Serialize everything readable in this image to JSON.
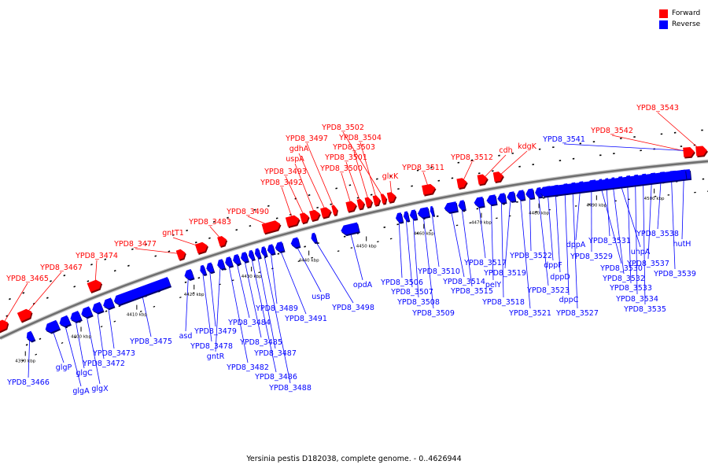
{
  "legend": {
    "forward_label": "Forward",
    "reverse_label": "Reverse",
    "forward_color": "#ff0000",
    "reverse_color": "#0000ff"
  },
  "caption": "Yersinia pestis D182038, complete genome. - 0..4626944",
  "ticks": [
    {
      "label": "4390 kbp"
    },
    {
      "label": "4400 kbp"
    },
    {
      "label": "4410 kbp"
    },
    {
      "label": "4420 kbp"
    },
    {
      "label": "4430 kbp"
    },
    {
      "label": "4440 kbp"
    },
    {
      "label": "4450 kbp"
    },
    {
      "label": "4460 kbp"
    },
    {
      "label": "4470 kbp"
    },
    {
      "label": "4480 kbp"
    },
    {
      "label": "4490 kbp"
    },
    {
      "label": "4500 kbp"
    }
  ],
  "forward_genes": [
    "YPD8_3465",
    "YPD8_3467",
    "YPD8_3474",
    "YPD8_3477",
    "gntT1",
    "YPD8_3483",
    "YPD8_3490",
    "YPD8_3492",
    "YPD8_3493",
    "uspA",
    "gdhA",
    "YPD8_3497",
    "YPD8_3500",
    "YPD8_3501",
    "YPD8_3503",
    "YPD8_3504",
    "YPD8_3502",
    "glxK",
    "YPD8_3511",
    "YPD8_3512",
    "cdh",
    "kdgK",
    "YPD8_3542",
    "YPD8_3543"
  ],
  "reverse_genes": [
    "YPD8_3466",
    "glgP",
    "glgA",
    "glgC",
    "glgX",
    "YPD8_3472",
    "YPD8_3473",
    "YPD8_3475",
    "asd",
    "YPD8_3478",
    "YPD8_3479",
    "gntR",
    "YPD8_3482",
    "YPD8_3484",
    "YPD8_3485",
    "YPD8_3486",
    "YPD8_3487",
    "YPD8_3488",
    "YPD8_3489",
    "YPD8_3491",
    "uspB",
    "YPD8_3498",
    "opdA",
    "YPD8_3506",
    "YPD8_3507",
    "YPD8_3508",
    "YPD8_3509",
    "YPD8_3510",
    "YPD8_3514",
    "YPD8_3515",
    "YPD8_3517",
    "pelY",
    "YPD8_3518",
    "YPD8_3519",
    "YPD8_3521",
    "YPD8_3522",
    "YPD8_3523",
    "dppF",
    "dppD",
    "dppC",
    "YPD8_3527",
    "dppA",
    "YPD8_3529",
    "YPD8_3530",
    "YPD8_3531",
    "YPD8_3532",
    "uhpA",
    "YPD8_3533",
    "YPD8_3534",
    "YPD8_3535",
    "YPD8_3537",
    "YPD8_3538",
    "YPD8_3539",
    "hutH",
    "YPD8_3541"
  ]
}
